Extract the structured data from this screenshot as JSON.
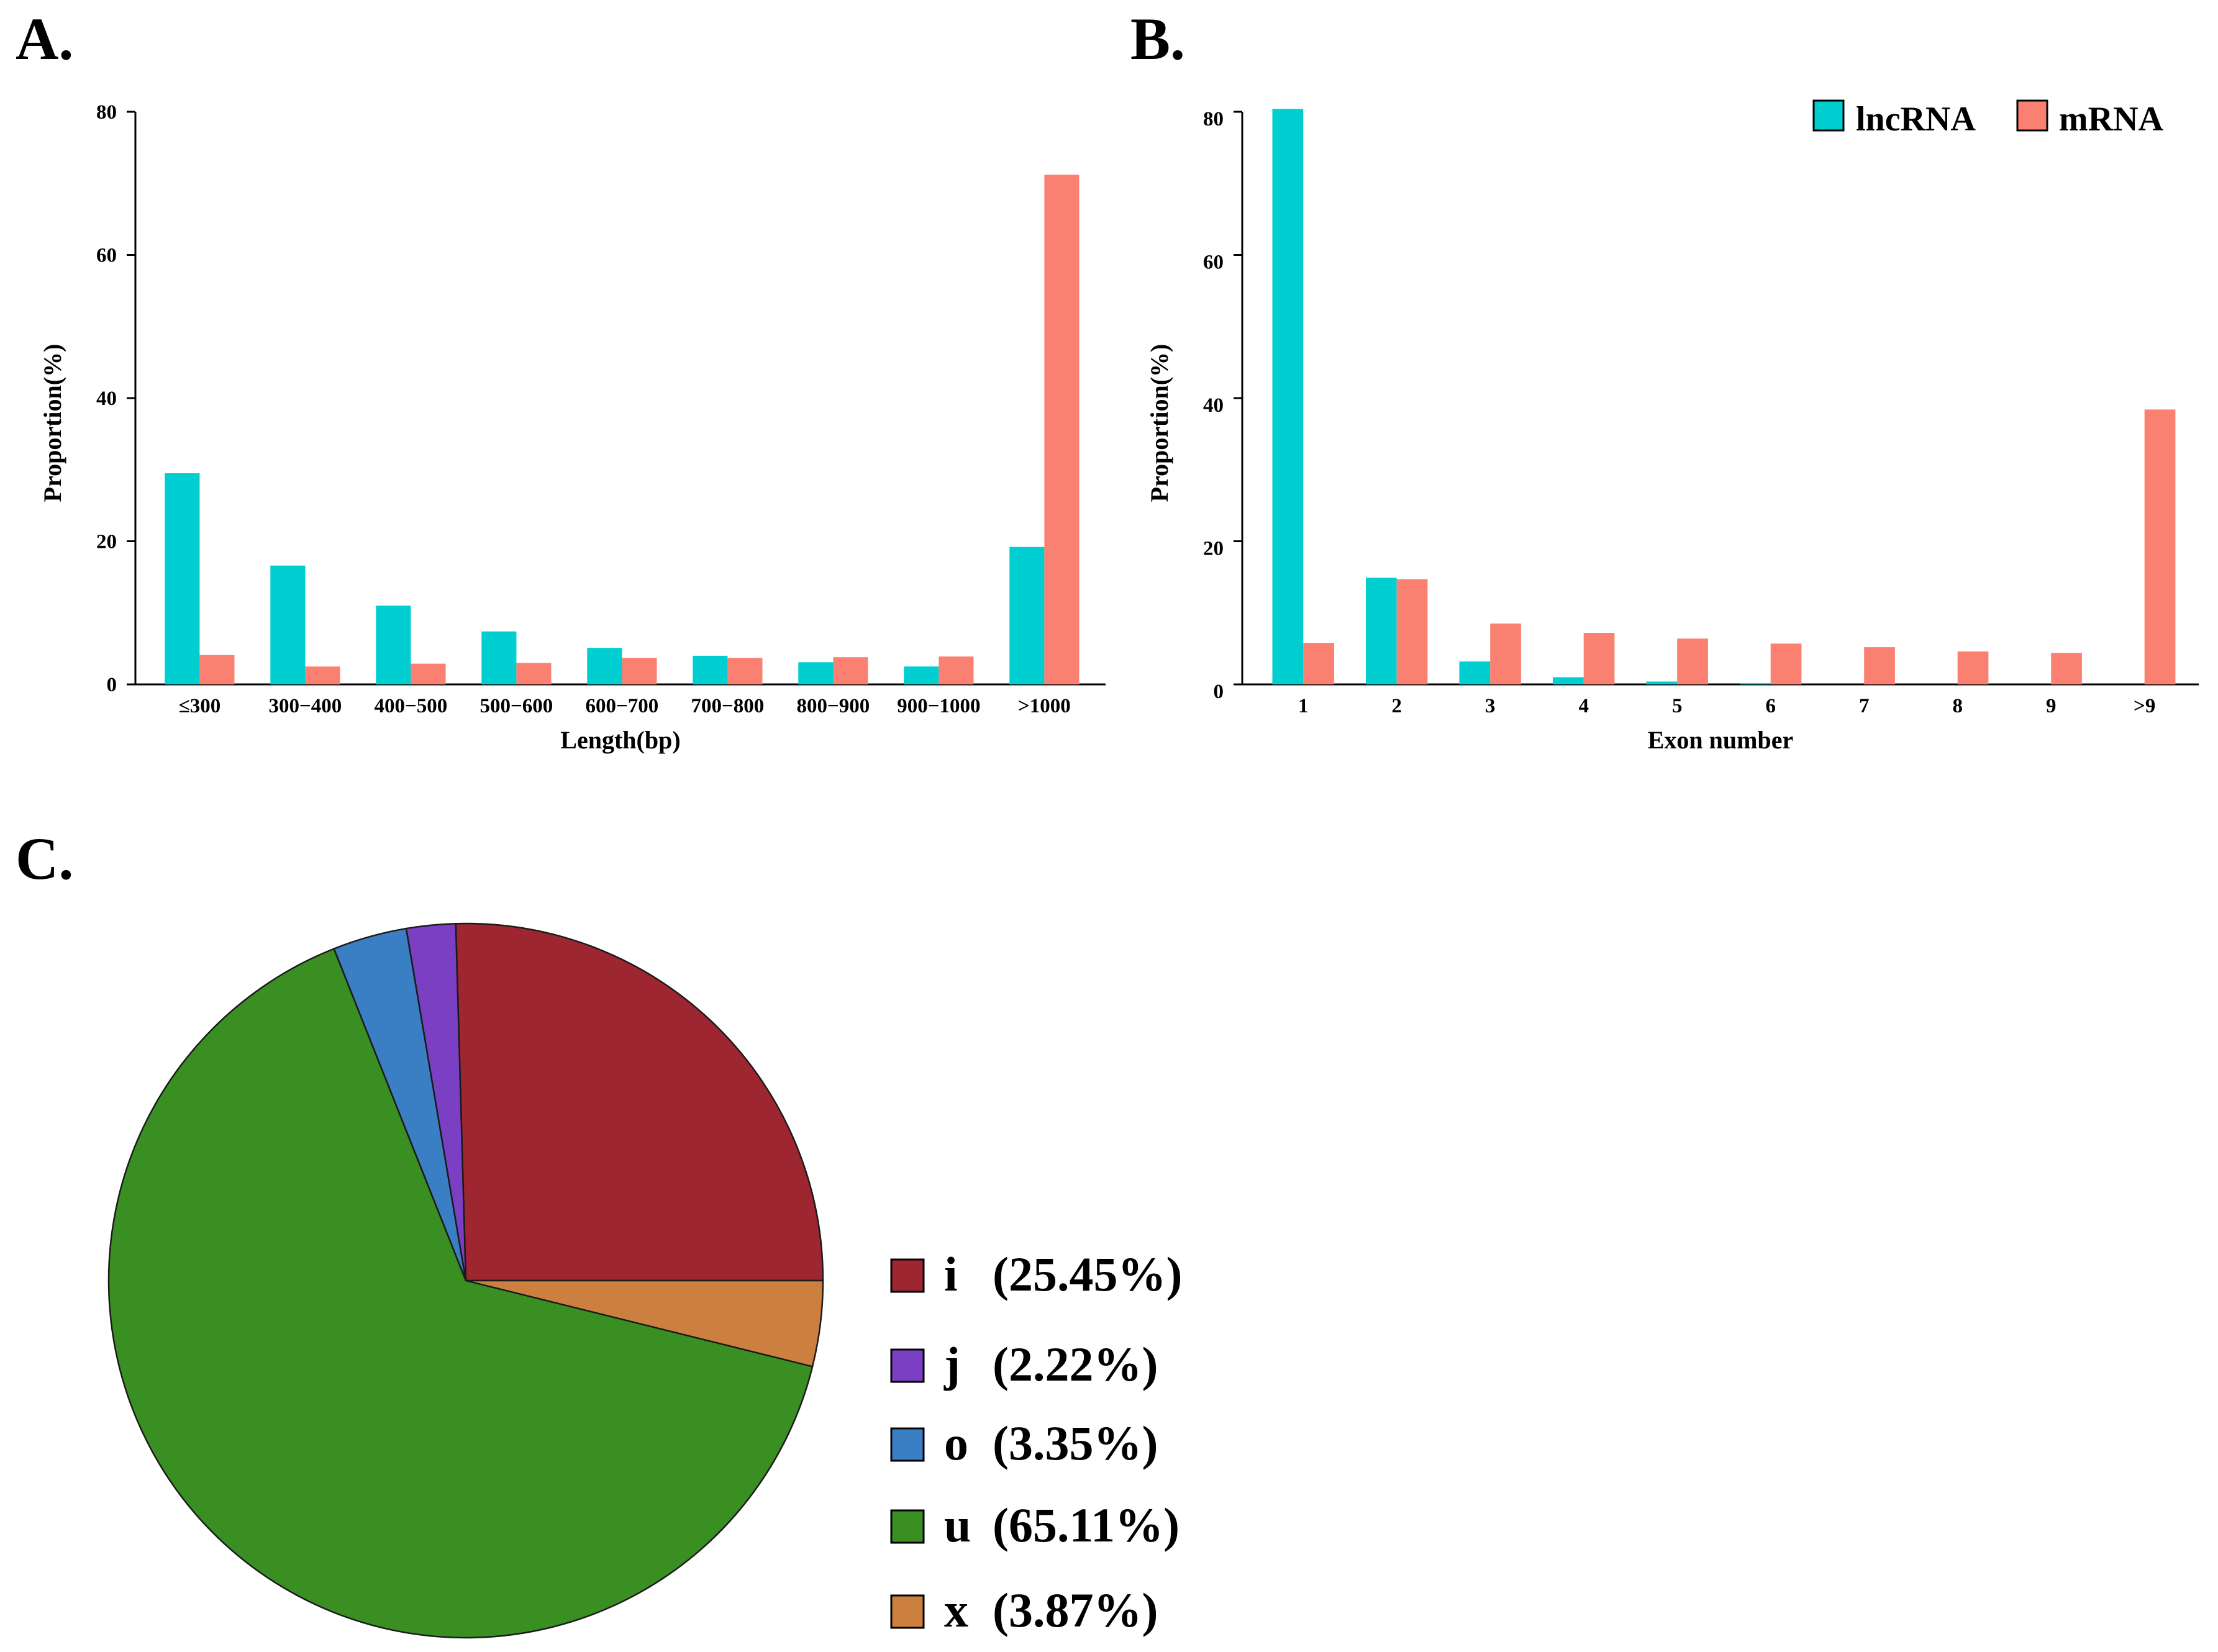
{
  "figure": {
    "panel_a_label": "A.",
    "panel_b_label": "B.",
    "panel_c_label": "C."
  },
  "colors": {
    "lncrna": "#00CED1",
    "mrna": "#FA8072",
    "i": "#9E2631",
    "j": "#7B3FC4",
    "o": "#3A7FC4",
    "u": "#3A8F22",
    "x": "#CC8040"
  },
  "chart_data": [
    {
      "id": "A",
      "type": "bar",
      "title": "",
      "xlabel": "Length(bp)",
      "ylabel": "Proportion(%)",
      "ylim": [
        0,
        80
      ],
      "yticks": [
        0,
        20,
        40,
        60,
        80
      ],
      "categories": [
        "≤300",
        "300−400",
        "400−500",
        "500−600",
        "600−700",
        "700−800",
        "800−900",
        "900−1000",
        ">1000"
      ],
      "series": [
        {
          "name": "lncRNA",
          "values": [
            29.5,
            16.6,
            11.0,
            7.4,
            5.1,
            4.0,
            3.1,
            2.5,
            19.2
          ]
        },
        {
          "name": "mRNA",
          "values": [
            4.1,
            2.5,
            2.9,
            3.0,
            3.7,
            3.7,
            3.8,
            3.9,
            71.2
          ]
        }
      ]
    },
    {
      "id": "B",
      "type": "bar",
      "title": "",
      "xlabel": "Exon number",
      "ylabel": "Proportion(%)",
      "ylim": [
        0,
        80
      ],
      "yticks": [
        0,
        20,
        40,
        60,
        80
      ],
      "categories": [
        "1",
        "2",
        "3",
        "4",
        "5",
        "6",
        "7",
        "8",
        "9",
        ">9"
      ],
      "legend": [
        "lncRNA",
        "mRNA"
      ],
      "legend_position": "top-right",
      "series": [
        {
          "name": "lncRNA",
          "values": [
            80.4,
            14.9,
            3.2,
            1.0,
            0.4,
            0.1,
            0,
            0,
            0,
            0
          ]
        },
        {
          "name": "mRNA",
          "values": [
            5.8,
            14.7,
            8.5,
            7.2,
            6.4,
            5.7,
            5.2,
            4.6,
            4.4,
            38.4
          ]
        }
      ]
    },
    {
      "id": "C",
      "type": "pie",
      "title": "",
      "slices": [
        {
          "name": "i",
          "value": 25.45,
          "label": "(25.45%)"
        },
        {
          "name": "x",
          "value": 3.87,
          "label": "(3.87%)"
        },
        {
          "name": "u",
          "value": 65.11,
          "label": "(65.11%)"
        },
        {
          "name": "o",
          "value": 3.35,
          "label": "(3.35%)"
        },
        {
          "name": "j",
          "value": 2.22,
          "label": "(2.22%)"
        }
      ],
      "legend_order": [
        "i",
        "j",
        "o",
        "u",
        "x"
      ]
    }
  ]
}
